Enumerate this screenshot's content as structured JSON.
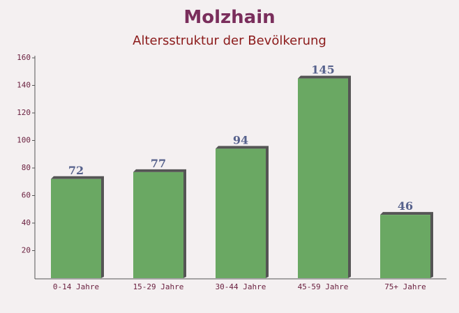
{
  "chart_data": {
    "type": "bar",
    "title": "Molzhain",
    "subtitle": "Altersstruktur der Bevölkerung",
    "categories": [
      "0-14 Jahre",
      "15-29 Jahre",
      "30-44 Jahre",
      "45-59 Jahre",
      "75+ Jahre"
    ],
    "values": [
      72,
      77,
      94,
      145,
      46
    ],
    "color": "#6aa863",
    "ylim": [
      0,
      160
    ],
    "yticks": [
      20,
      40,
      60,
      80,
      100,
      120,
      140,
      160
    ]
  }
}
